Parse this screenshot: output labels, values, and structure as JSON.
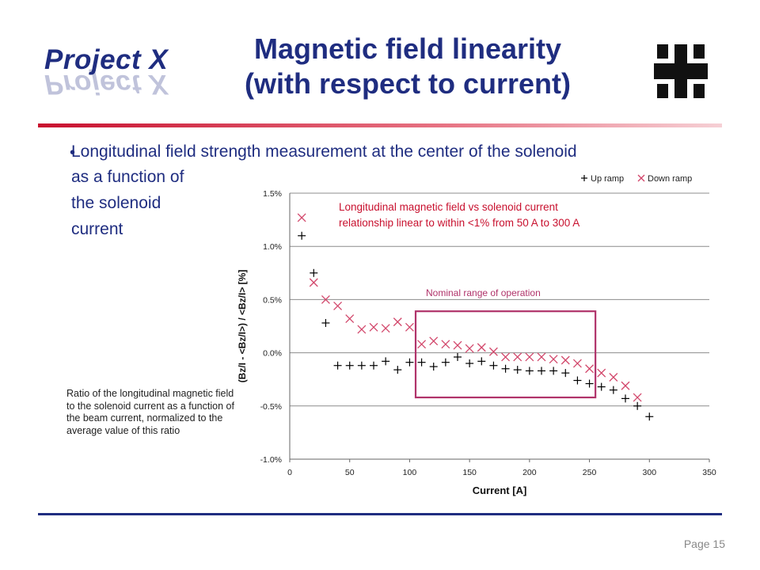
{
  "header": {
    "logo_text": "Project X",
    "title_line1": "Magnetic field linearity",
    "title_line2": "(with respect to current)"
  },
  "bullet": {
    "line1": "Longitudinal field strength measurement at the center of the solenoid",
    "line2": "as a function of",
    "line3": "the solenoid",
    "line4": "current"
  },
  "caption": "Ratio of the longitudinal magnetic field to the solenoid current as a function of the beam current, normalized to the average value of this ratio",
  "footer": {
    "page": "Page 15"
  },
  "colors": {
    "title": "#1f2d80",
    "accent_red": "#c8102e",
    "down_marker": "#d2476b",
    "box": "#b0336a"
  },
  "chart_data": {
    "type": "scatter",
    "xlabel": "Current [A]",
    "ylabel": "(Bz/I - <Bz/I>) / <Bz/I> [%]",
    "xlim": [
      0,
      350
    ],
    "ylim": [
      -1.0,
      1.5
    ],
    "xticks": [
      "0",
      "50",
      "100",
      "150",
      "200",
      "250",
      "300",
      "350"
    ],
    "yticks": [
      "-1.0%",
      "-0.5%",
      "0.0%",
      "0.5%",
      "1.0%",
      "1.5%"
    ],
    "grid": true,
    "legend_position": "top-right",
    "series": [
      {
        "name": "Up ramp",
        "marker": "plus",
        "color": "#000000",
        "x": [
          10,
          20,
          30,
          40,
          50,
          60,
          70,
          80,
          90,
          100,
          110,
          120,
          130,
          140,
          150,
          160,
          170,
          180,
          190,
          200,
          210,
          220,
          230,
          240,
          250,
          260,
          270,
          280,
          290,
          300
        ],
        "y": [
          1.1,
          0.75,
          0.28,
          -0.12,
          -0.12,
          -0.12,
          -0.12,
          -0.08,
          -0.16,
          -0.09,
          -0.09,
          -0.13,
          -0.09,
          -0.04,
          -0.1,
          -0.08,
          -0.12,
          -0.15,
          -0.16,
          -0.17,
          -0.17,
          -0.17,
          -0.19,
          -0.26,
          -0.29,
          -0.32,
          -0.35,
          -0.43,
          -0.5,
          -0.6
        ]
      },
      {
        "name": "Down ramp",
        "marker": "x",
        "color": "#d2476b",
        "x": [
          10,
          20,
          30,
          40,
          50,
          60,
          70,
          80,
          90,
          100,
          110,
          120,
          130,
          140,
          150,
          160,
          170,
          180,
          190,
          200,
          210,
          220,
          230,
          240,
          250,
          260,
          270,
          280,
          290
        ],
        "y": [
          1.27,
          0.66,
          0.5,
          0.44,
          0.32,
          0.22,
          0.24,
          0.23,
          0.29,
          0.24,
          0.08,
          0.11,
          0.08,
          0.07,
          0.04,
          0.05,
          0.01,
          -0.04,
          -0.04,
          -0.04,
          -0.04,
          -0.06,
          -0.07,
          -0.1,
          -0.15,
          -0.19,
          -0.23,
          -0.31,
          -0.42
        ]
      }
    ],
    "annotations": [
      {
        "text": "Longitudinal magnetic field vs solenoid current",
        "color": "#c8102e"
      },
      {
        "text": "relationship linear to within <1% from 50 A to 300 A",
        "color": "#c8102e"
      },
      {
        "text": "Nominal range of operation",
        "color": "#b0336a"
      }
    ],
    "highlight_box": {
      "x_range": [
        105,
        255
      ],
      "y_range": [
        -0.42,
        0.39
      ],
      "label": "Nominal range of operation"
    }
  }
}
